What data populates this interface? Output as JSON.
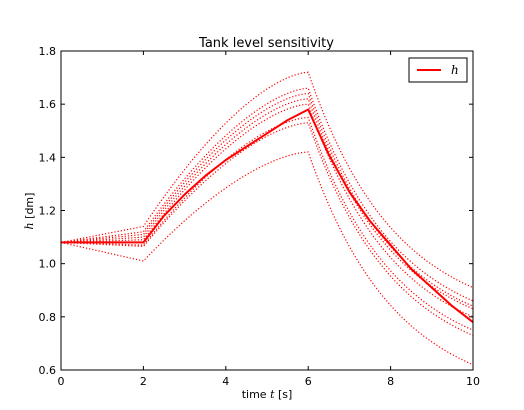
{
  "chart_data": {
    "type": "line",
    "title": "Tank level sensitivity",
    "xlabel_prefix": "time ",
    "xlabel_var": "t",
    "xlabel_suffix": " [s]",
    "ylabel_var": "h",
    "ylabel_suffix": " [dm]",
    "xlim": [
      0,
      10
    ],
    "ylim": [
      0.6,
      1.8
    ],
    "xticks": [
      0,
      2,
      4,
      6,
      8,
      10
    ],
    "yticks": [
      0.6,
      0.8,
      1.0,
      1.2,
      1.4,
      1.6,
      1.8
    ],
    "xtick_labels": [
      "0",
      "2",
      "4",
      "6",
      "8",
      "10"
    ],
    "ytick_labels": [
      "0.6",
      "0.8",
      "1.0",
      "1.2",
      "1.4",
      "1.6",
      "1.8"
    ],
    "grid": false,
    "legend": {
      "position": "top-right",
      "entries": [
        "h"
      ]
    },
    "color": "#ff0000",
    "main_series": {
      "name": "h",
      "style": "solid",
      "h0": 1.08,
      "x": [
        0,
        2,
        2.5,
        3,
        3.5,
        4,
        4.5,
        5,
        5.5,
        6,
        6.5,
        7,
        7.5,
        8,
        8.5,
        9,
        9.5,
        10
      ],
      "values": [
        1.08,
        1.08,
        1.18,
        1.26,
        1.33,
        1.39,
        1.44,
        1.49,
        1.54,
        1.58,
        1.41,
        1.27,
        1.16,
        1.07,
        0.98,
        0.91,
        0.84,
        0.78
      ]
    },
    "sensitivity_series": [
      {
        "style": "dotted",
        "at_t2": 1.01,
        "at_t6": 1.42,
        "at_t10": 0.62
      },
      {
        "style": "dotted",
        "at_t2": 1.065,
        "at_t6": 1.53,
        "at_t10": 0.73
      },
      {
        "style": "dotted",
        "at_t2": 1.07,
        "at_t6": 1.55,
        "at_t10": 0.75
      },
      {
        "style": "dotted",
        "at_t2": 1.09,
        "at_t6": 1.6,
        "at_t10": 0.8
      },
      {
        "style": "dotted",
        "at_t2": 1.1,
        "at_t6": 1.62,
        "at_t10": 0.83
      },
      {
        "style": "dotted",
        "at_t2": 1.11,
        "at_t6": 1.64,
        "at_t10": 0.84
      },
      {
        "style": "dotted",
        "at_t2": 1.12,
        "at_t6": 1.66,
        "at_t10": 0.86
      },
      {
        "style": "dotted",
        "at_t2": 1.14,
        "at_t6": 1.72,
        "at_t10": 0.91
      }
    ]
  }
}
